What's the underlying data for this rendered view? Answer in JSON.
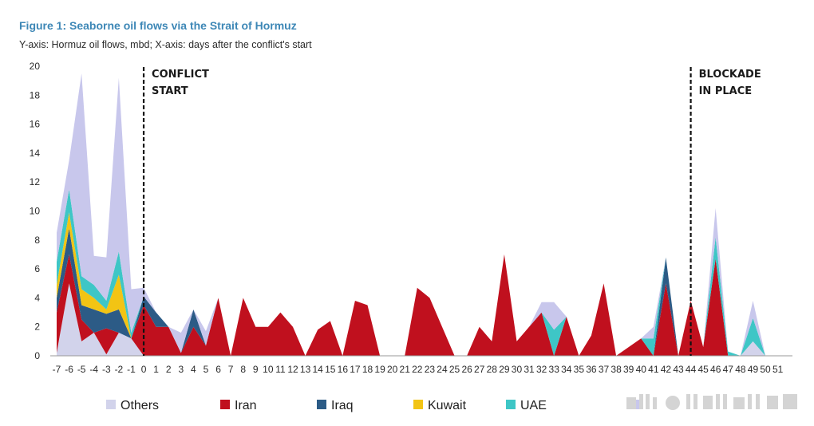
{
  "title": "Figure 1: Seaborne oil flows via the Strait of Hormuz",
  "subtitle": "Y-axis: Hormuz oil flows, mbd; X-axis: days after the conflict's start",
  "chart_data": {
    "type": "area",
    "stacked": true,
    "x": [
      -7,
      -6,
      -5,
      -4,
      -3,
      -2,
      -1,
      0,
      1,
      2,
      3,
      4,
      5,
      6,
      7,
      8,
      9,
      10,
      11,
      12,
      13,
      14,
      15,
      16,
      17,
      18,
      19,
      20,
      21,
      22,
      23,
      24,
      25,
      26,
      27,
      28,
      29,
      30,
      31,
      32,
      33,
      34,
      35,
      36,
      37,
      38,
      39,
      40,
      41,
      42,
      43,
      44,
      45,
      46,
      47,
      48,
      49,
      50,
      51
    ],
    "series": [
      {
        "name": "Others",
        "color": "#d2d3eb",
        "values": [
          0.2,
          5,
          1,
          1.6,
          0.1,
          1.6,
          1.2,
          0,
          0,
          0,
          0,
          0,
          0,
          0,
          0,
          0,
          0,
          0,
          0,
          0,
          0,
          0,
          0,
          0,
          0,
          0,
          0,
          0,
          0,
          0,
          0,
          0,
          0,
          0,
          0,
          0,
          0,
          0,
          0,
          0,
          0,
          0,
          0,
          0,
          0,
          0,
          0,
          0,
          0,
          0,
          0,
          0,
          0,
          0,
          0,
          0,
          1,
          0,
          0
        ]
      },
      {
        "name": "Iran",
        "color": "#c0101e",
        "values": [
          2.8,
          2,
          1.5,
          0,
          1.8,
          0,
          0,
          3.5,
          2,
          2,
          0.2,
          2,
          0.7,
          4,
          0,
          4,
          2,
          2,
          3,
          2,
          0,
          1.8,
          2.4,
          0,
          3.8,
          3.5,
          0,
          0,
          0,
          4.7,
          4,
          2,
          0,
          0,
          2,
          1,
          7,
          1,
          2,
          3,
          0,
          2.7,
          0,
          1.4,
          5,
          0,
          0.6,
          1.2,
          0,
          5,
          0,
          3.8,
          0.6,
          6.7,
          0,
          0,
          0,
          0,
          0
        ]
      },
      {
        "name": "Iraq",
        "color": "#2c5b86",
        "values": [
          1,
          1.8,
          1,
          1.6,
          1,
          1.6,
          0,
          0.6,
          1,
          0,
          0,
          1.2,
          0,
          0,
          0,
          0,
          0,
          0,
          0,
          0,
          0,
          0,
          0,
          0,
          0,
          0,
          0,
          0,
          0,
          0,
          0,
          0,
          0,
          0,
          0,
          0,
          0,
          0,
          0,
          0,
          0,
          0,
          0,
          0,
          0,
          0,
          0,
          0,
          0,
          1.8,
          0,
          0,
          0,
          0,
          0,
          0,
          0,
          0,
          0
        ]
      },
      {
        "name": "Kuwait",
        "color": "#f2c414",
        "values": [
          0.9,
          1.1,
          1.1,
          0.8,
          0.3,
          2.4,
          0,
          0,
          0,
          0,
          0,
          0,
          0,
          0,
          0,
          0,
          0,
          0,
          0,
          0,
          0,
          0,
          0,
          0,
          0,
          0,
          0,
          0,
          0,
          0,
          0,
          0,
          0,
          0,
          0,
          0,
          0,
          0,
          0,
          0,
          0,
          0,
          0,
          0,
          0,
          0,
          0,
          0,
          0,
          0,
          0,
          0,
          0,
          0,
          0,
          0,
          0,
          0,
          0
        ]
      },
      {
        "name": "UAE",
        "color": "#3ec6c6",
        "values": [
          1.6,
          1.6,
          0.9,
          0.9,
          0.6,
          1.6,
          0.4,
          0,
          0,
          0,
          0,
          0,
          0,
          0,
          0,
          0,
          0,
          0,
          0,
          0,
          0,
          0,
          0,
          0,
          0,
          0,
          0,
          0,
          0,
          0,
          0,
          0,
          0,
          0,
          0,
          0,
          0,
          0,
          0,
          0,
          1.8,
          0,
          0,
          0,
          0,
          0,
          0,
          0,
          1.2,
          0,
          0,
          0,
          0,
          1.5,
          0.3,
          0,
          1.6,
          0,
          0
        ]
      },
      {
        "name": "",
        "color": "#c8c7ec",
        "values": [
          2,
          2,
          14,
          2,
          3,
          12,
          3,
          0.6,
          0,
          0,
          1.4,
          0,
          1,
          0,
          0,
          0,
          0,
          0,
          0,
          0,
          0,
          0,
          0,
          0,
          0,
          0,
          0,
          0,
          0,
          0,
          0,
          0,
          0,
          0,
          0,
          0,
          0,
          0,
          0,
          0.7,
          1.9,
          0,
          0,
          0,
          0,
          0,
          0,
          0,
          0.8,
          0,
          0,
          0,
          0,
          2,
          0,
          0,
          1.2,
          0,
          0
        ]
      }
    ],
    "ylim": [
      0,
      20
    ],
    "yticks": [
      "0",
      "2",
      "4",
      "6",
      "8",
      "10",
      "12",
      "14",
      "16",
      "18",
      "20"
    ],
    "xlabel": "days after the conflict's start",
    "ylabel": "Hormuz oil flows, mbd",
    "annotations": [
      {
        "x": 0,
        "label_lines": [
          "CONFLICT",
          "START"
        ]
      },
      {
        "x": 44,
        "label_lines": [
          "BLOCKADE",
          "IN PLACE"
        ]
      }
    ],
    "legend": [
      "Others",
      "Iran",
      "Iraq",
      "Kuwait",
      "UAE"
    ],
    "legend_position": "bottom"
  }
}
